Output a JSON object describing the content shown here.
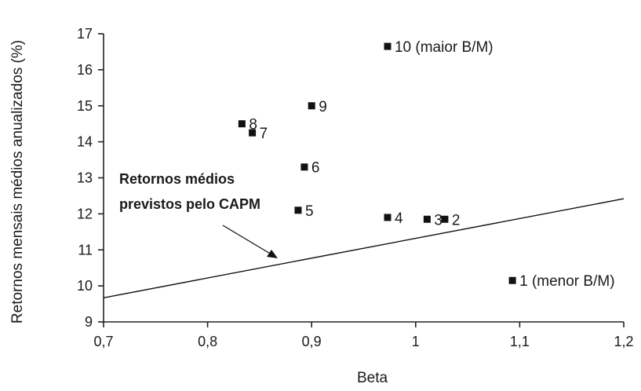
{
  "chart_data": {
    "type": "scatter",
    "xlabel": "Beta",
    "ylabel": "Retornos mensais médios anualizados (%)",
    "xlim": [
      0.7,
      1.2
    ],
    "ylim": [
      9,
      17
    ],
    "x_ticks": [
      "0,7",
      "0,8",
      "0,9",
      "1",
      "1,1",
      "1,2"
    ],
    "y_ticks": [
      "9",
      "10",
      "11",
      "12",
      "13",
      "14",
      "15",
      "16",
      "17"
    ],
    "grid": false,
    "points": [
      {
        "label": "1 (menor B/M)",
        "x": 1.093,
        "y": 10.15
      },
      {
        "label": "2",
        "x": 1.028,
        "y": 11.85
      },
      {
        "label": "3",
        "x": 1.011,
        "y": 11.85
      },
      {
        "label": "4",
        "x": 0.973,
        "y": 11.9
      },
      {
        "label": "5",
        "x": 0.887,
        "y": 12.1
      },
      {
        "label": "6",
        "x": 0.893,
        "y": 13.3
      },
      {
        "label": "7",
        "x": 0.843,
        "y": 14.25
      },
      {
        "label": "8",
        "x": 0.833,
        "y": 14.5
      },
      {
        "label": "9",
        "x": 0.9,
        "y": 15.0
      },
      {
        "label": "10 (maior B/M)",
        "x": 0.973,
        "y": 16.65
      }
    ],
    "capm_line": {
      "x": [
        0.7,
        1.2
      ],
      "y": [
        9.67,
        12.42
      ]
    },
    "annotation": {
      "lines": [
        "Retornos médios",
        "previstos pelo CAPM"
      ]
    }
  }
}
